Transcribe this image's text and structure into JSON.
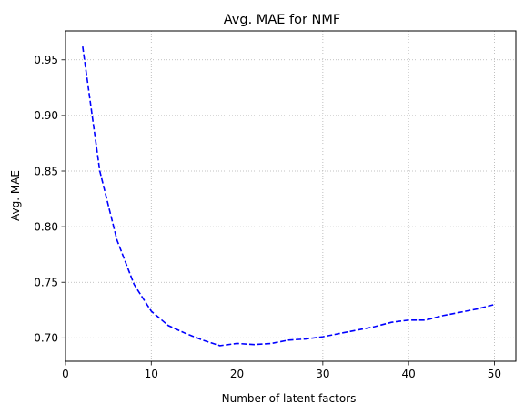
{
  "chart_data": {
    "type": "line",
    "title": "Avg. MAE for NMF",
    "xlabel": "Number of latent factors",
    "ylabel": "Avg. MAE",
    "xlim": [
      0,
      52.5
    ],
    "ylim": [
      0.679,
      0.976
    ],
    "xticks": [
      0,
      10,
      20,
      30,
      40,
      50
    ],
    "yticks": [
      0.7,
      0.75,
      0.8,
      0.85,
      0.9,
      0.95
    ],
    "xtick_labels": [
      "0",
      "10",
      "20",
      "30",
      "40",
      "50"
    ],
    "ytick_labels": [
      "0.70",
      "0.75",
      "0.80",
      "0.85",
      "0.90",
      "0.95"
    ],
    "grid": true,
    "grid_style": "dotted",
    "series": [
      {
        "line_style": "dashed",
        "color": "#0000ff",
        "x": [
          2,
          4,
          6,
          8,
          10,
          12,
          14,
          16,
          18,
          20,
          22,
          24,
          26,
          28,
          30,
          32,
          34,
          36,
          38,
          40,
          42,
          44,
          46,
          48,
          50
        ],
        "y": [
          0.962,
          0.85,
          0.788,
          0.748,
          0.724,
          0.711,
          0.704,
          0.698,
          0.693,
          0.695,
          0.694,
          0.695,
          0.698,
          0.699,
          0.701,
          0.704,
          0.707,
          0.71,
          0.714,
          0.716,
          0.716,
          0.72,
          0.723,
          0.726,
          0.73
        ]
      }
    ]
  }
}
